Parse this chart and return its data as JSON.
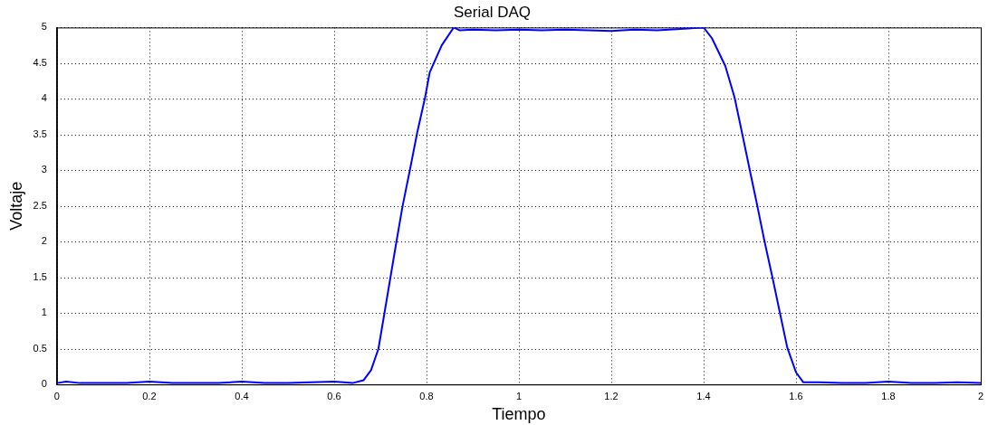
{
  "chart_data": {
    "type": "line",
    "title": "Serial DAQ",
    "xlabel": "Tiempo",
    "ylabel": "Voltaje",
    "xlim": [
      0,
      2
    ],
    "ylim": [
      0,
      5
    ],
    "xticks": [
      0,
      0.2,
      0.4,
      0.6,
      0.8,
      1,
      1.2,
      1.4,
      1.6,
      1.8,
      2
    ],
    "yticks": [
      0,
      0.5,
      1,
      1.5,
      2,
      2.5,
      3,
      3.5,
      4,
      4.5,
      5
    ],
    "grid": true,
    "legend": false,
    "marker": "none",
    "line_style": "solid",
    "series": [
      {
        "color": "#0000ff",
        "x": [
          0,
          0.02,
          0.05,
          0.1,
          0.15,
          0.2,
          0.25,
          0.3,
          0.35,
          0.4,
          0.45,
          0.5,
          0.55,
          0.6,
          0.64,
          0.664,
          0.68,
          0.696,
          0.709,
          0.722,
          0.735,
          0.748,
          0.764,
          0.78,
          0.797,
          0.807,
          0.833,
          0.859,
          0.872,
          0.9,
          0.95,
          1,
          1.05,
          1.1,
          1.15,
          1.2,
          1.25,
          1.3,
          1.35,
          1.4,
          1.418,
          1.447,
          1.467,
          1.483,
          1.5,
          1.516,
          1.532,
          1.549,
          1.565,
          1.581,
          1.6,
          1.616,
          1.65,
          1.7,
          1.75,
          1.8,
          1.85,
          1.9,
          1.95,
          2
        ],
        "values": [
          0.02,
          0.04,
          0.02,
          0.02,
          0.02,
          0.04,
          0.02,
          0.02,
          0.02,
          0.04,
          0.02,
          0.02,
          0.03,
          0.04,
          0.02,
          0.06,
          0.2,
          0.5,
          1.0,
          1.5,
          2.0,
          2.49,
          3.0,
          3.53,
          4.02,
          4.37,
          4.75,
          5.0,
          4.96,
          4.97,
          4.96,
          4.97,
          4.96,
          4.97,
          4.96,
          4.95,
          4.97,
          4.96,
          4.98,
          5.0,
          4.85,
          4.46,
          4.02,
          3.53,
          3.0,
          2.51,
          2.0,
          1.5,
          1.01,
          0.52,
          0.17,
          0.03,
          0.03,
          0.02,
          0.02,
          0.04,
          0.02,
          0.02,
          0.03,
          0.02
        ]
      }
    ]
  }
}
